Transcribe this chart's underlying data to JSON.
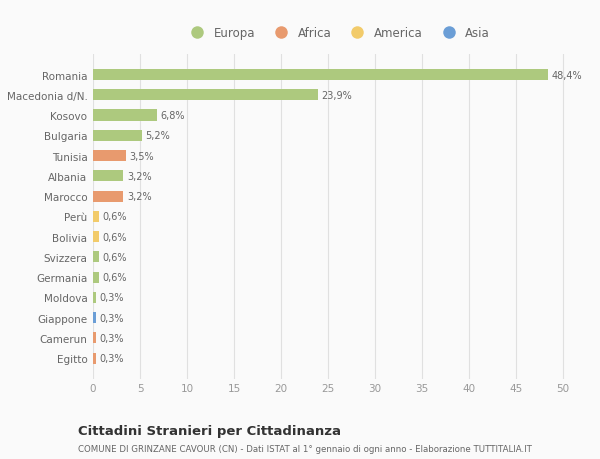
{
  "categories": [
    "Romania",
    "Macedonia d/N.",
    "Kosovo",
    "Bulgaria",
    "Tunisia",
    "Albania",
    "Marocco",
    "Perù",
    "Bolivia",
    "Svizzera",
    "Germania",
    "Moldova",
    "Giappone",
    "Camerun",
    "Egitto"
  ],
  "values": [
    48.4,
    23.9,
    6.8,
    5.2,
    3.5,
    3.2,
    3.2,
    0.6,
    0.6,
    0.6,
    0.6,
    0.3,
    0.3,
    0.3,
    0.3
  ],
  "labels": [
    "48,4%",
    "23,9%",
    "6,8%",
    "5,2%",
    "3,5%",
    "3,2%",
    "3,2%",
    "0,6%",
    "0,6%",
    "0,6%",
    "0,6%",
    "0,3%",
    "0,3%",
    "0,3%",
    "0,3%"
  ],
  "colors": [
    "#adc97e",
    "#adc97e",
    "#adc97e",
    "#adc97e",
    "#e89a6e",
    "#adc97e",
    "#e89a6e",
    "#f2cb6a",
    "#f2cb6a",
    "#adc97e",
    "#adc97e",
    "#adc97e",
    "#6b9ed6",
    "#e89a6e",
    "#e89a6e"
  ],
  "legend": [
    {
      "label": "Europa",
      "color": "#adc97e"
    },
    {
      "label": "Africa",
      "color": "#e89a6e"
    },
    {
      "label": "America",
      "color": "#f2cb6a"
    },
    {
      "label": "Asia",
      "color": "#6b9ed6"
    }
  ],
  "xlim": [
    0,
    52
  ],
  "xticks": [
    0,
    5,
    10,
    15,
    20,
    25,
    30,
    35,
    40,
    45,
    50
  ],
  "title": "Cittadini Stranieri per Cittadinanza",
  "subtitle": "COMUNE DI GRINZANE CAVOUR (CN) - Dati ISTAT al 1° gennaio di ogni anno - Elaborazione TUTTITALIA.IT",
  "background_color": "#fafafa",
  "bar_height": 0.55
}
